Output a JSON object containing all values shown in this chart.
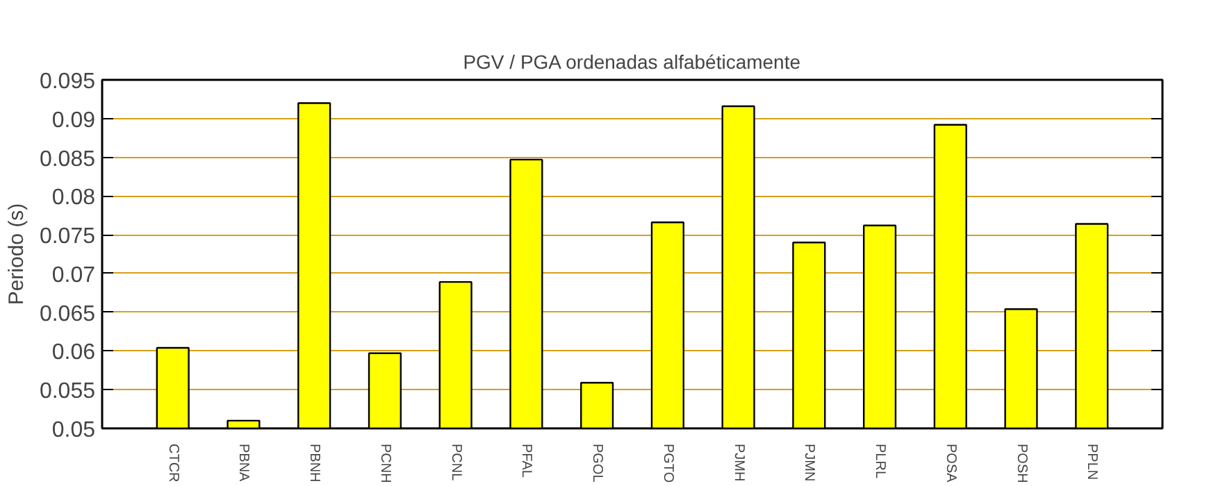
{
  "chart_data": {
    "type": "bar",
    "title": "PGV / PGA ordenadas alfabéticamente",
    "ylabel": "Periodo (s)",
    "categories": [
      "CTCR",
      "PBNA",
      "PBNH",
      "PCNH",
      "PCNL",
      "PFAL",
      "PGOL",
      "PGTO",
      "PJMH",
      "PJMN",
      "PLRL",
      "POSA",
      "POSH",
      "PPLN"
    ],
    "values": [
      0.0604,
      0.051,
      0.092,
      0.0597,
      0.0689,
      0.0847,
      0.0559,
      0.0766,
      0.0916,
      0.074,
      0.0762,
      0.0892,
      0.0654,
      0.0764
    ],
    "color": "#ffff00",
    "ylim": [
      0.05,
      0.095
    ],
    "yticks": [
      {
        "value": 0.05,
        "label": "0.05"
      },
      {
        "value": 0.055,
        "label": "0.055"
      },
      {
        "value": 0.06,
        "label": "0.06"
      },
      {
        "value": 0.065,
        "label": "0.065"
      },
      {
        "value": 0.07,
        "label": "0.07"
      },
      {
        "value": 0.075,
        "label": "0.075"
      },
      {
        "value": 0.08,
        "label": "0.08"
      },
      {
        "value": 0.085,
        "label": "0.085"
      },
      {
        "value": 0.09,
        "label": "0.09"
      },
      {
        "value": 0.095,
        "label": "0.095"
      }
    ],
    "grid": "y"
  }
}
